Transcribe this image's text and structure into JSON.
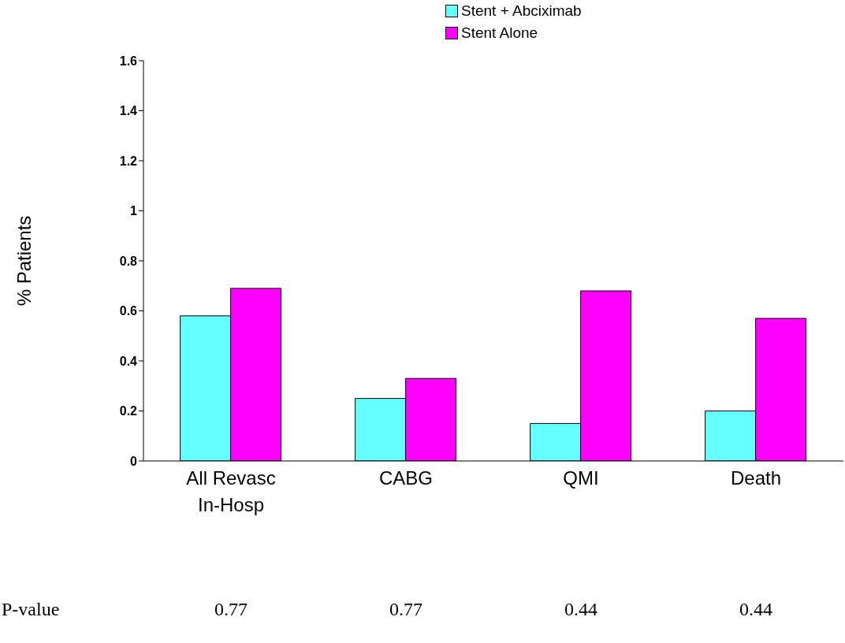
{
  "chart_data": {
    "type": "bar",
    "ylabel": "% Patients",
    "categories": [
      "All Revasc In-Hosp",
      "CABG",
      "QMI",
      "Death"
    ],
    "series": [
      {
        "name": "Stent + Abciximab",
        "color": "#66ffff",
        "values": [
          0.58,
          0.25,
          0.15,
          0.2
        ]
      },
      {
        "name": "Stent Alone",
        "color": "#ff00ff",
        "values": [
          0.69,
          0.33,
          0.68,
          0.57
        ]
      }
    ],
    "ylim": [
      0,
      1.6
    ],
    "yticks": [
      0,
      0.2,
      0.4,
      0.6,
      0.8,
      1,
      1.2,
      1.4,
      1.6
    ],
    "grid": false,
    "legend": "top",
    "annotations": [
      "P-value",
      "0.77",
      "0.77",
      "0.44",
      "0.44"
    ]
  }
}
